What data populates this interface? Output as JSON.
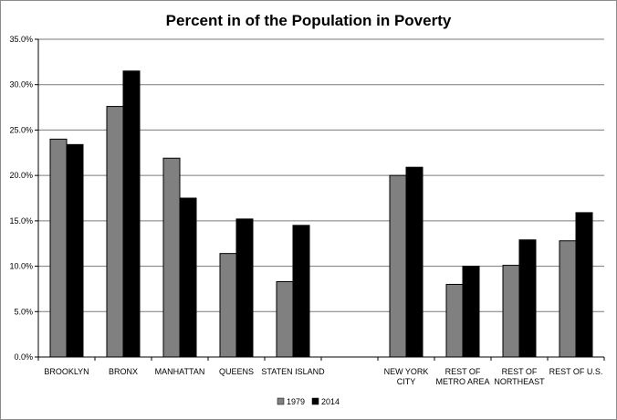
{
  "chart_data": {
    "type": "bar",
    "title": "Percent in of the Population in Poverty",
    "xlabel": "",
    "ylabel": "",
    "categories": [
      [
        "BROOKLYN"
      ],
      [
        "BRONX"
      ],
      [
        "MANHATTAN"
      ],
      [
        "QUEENS"
      ],
      [
        "STATEN ISLAND"
      ],
      [
        ""
      ],
      [
        "NEW YORK",
        "CITY"
      ],
      [
        "REST OF",
        "METRO AREA"
      ],
      [
        "REST OF",
        "NORTHEAST"
      ],
      [
        "REST OF U.S."
      ]
    ],
    "series": [
      {
        "name": "1979",
        "color": "#808080",
        "values": [
          24.0,
          27.6,
          21.9,
          11.4,
          8.3,
          null,
          20.0,
          8.0,
          10.1,
          12.8
        ]
      },
      {
        "name": "2014",
        "color": "#000000",
        "values": [
          23.4,
          31.5,
          17.5,
          15.2,
          14.5,
          null,
          20.9,
          10.0,
          12.9,
          15.9
        ]
      }
    ],
    "ylim": [
      0,
      35
    ],
    "yticks": [
      0,
      5,
      10,
      15,
      20,
      25,
      30,
      35
    ],
    "ytick_labels": [
      "0.0%",
      "5.0%",
      "10.0%",
      "15.0%",
      "20.0%",
      "25.0%",
      "30.0%",
      "35.0%"
    ],
    "grid": true,
    "legend": "bottom-center"
  }
}
